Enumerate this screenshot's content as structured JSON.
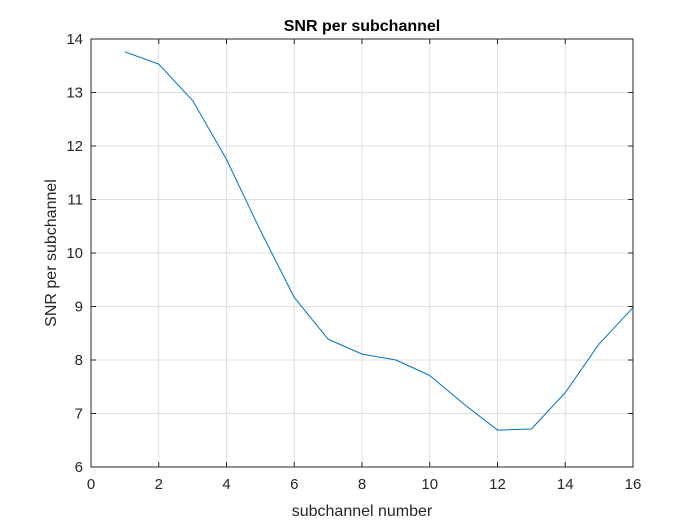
{
  "chart_data": {
    "type": "line",
    "title": "SNR per subchannel",
    "xlabel": "subchannel number",
    "ylabel": "SNR per subchannel",
    "xlim": [
      0,
      16
    ],
    "ylim": [
      6,
      14
    ],
    "xticks": [
      0,
      2,
      4,
      6,
      8,
      10,
      12,
      14,
      16
    ],
    "yticks": [
      6,
      7,
      8,
      9,
      10,
      11,
      12,
      13,
      14
    ],
    "grid": true,
    "series": [
      {
        "x": [
          1,
          2,
          3,
          4,
          5,
          6,
          7,
          8,
          9,
          10,
          11,
          12,
          13,
          14,
          15,
          16
        ],
        "values": [
          13.76,
          13.53,
          12.85,
          11.75,
          10.42,
          9.17,
          8.39,
          8.11,
          8.0,
          7.71,
          7.18,
          6.69,
          6.71,
          7.39,
          8.3,
          8.98
        ],
        "color": "#0072BD"
      }
    ]
  },
  "colors": {
    "axis": "#262626",
    "grid": "#dfdfdf",
    "background": "#ffffff"
  }
}
